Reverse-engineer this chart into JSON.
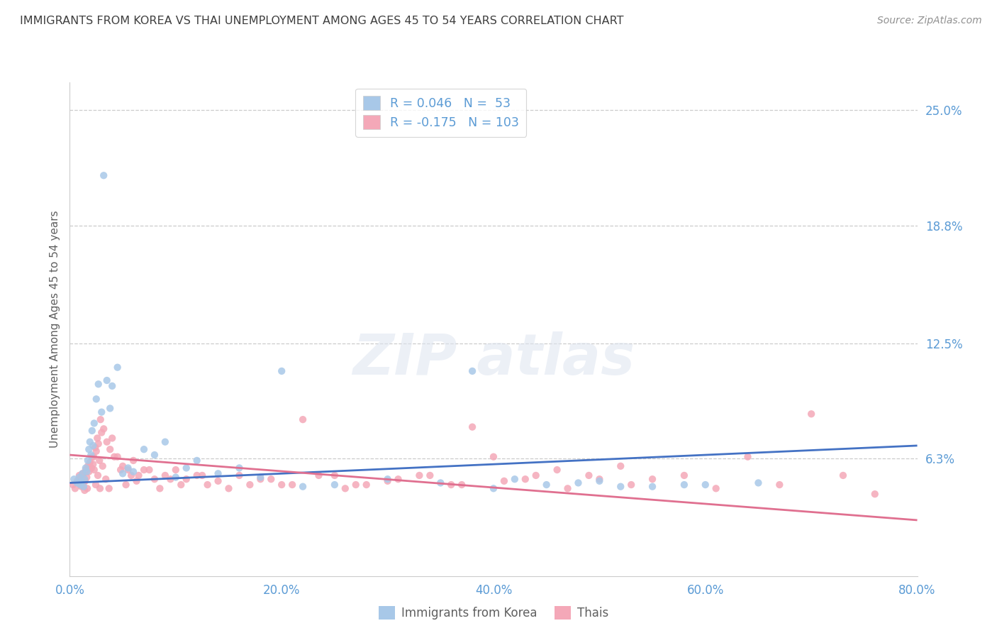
{
  "title": "IMMIGRANTS FROM KOREA VS THAI UNEMPLOYMENT AMONG AGES 45 TO 54 YEARS CORRELATION CHART",
  "source": "Source: ZipAtlas.com",
  "ylabel": "Unemployment Among Ages 45 to 54 years",
  "xlabel_vals": [
    0.0,
    20.0,
    40.0,
    60.0,
    80.0
  ],
  "ytick_vals": [
    6.3,
    12.5,
    18.8,
    25.0
  ],
  "xlim": [
    0.0,
    80.0
  ],
  "ylim": [
    0.0,
    26.5
  ],
  "korea_R": 0.046,
  "korea_N": 53,
  "thai_R": -0.175,
  "thai_N": 103,
  "korea_color": "#a8c8e8",
  "thai_color": "#f4a8b8",
  "korea_line_color": "#4472c4",
  "thai_line_color": "#e07090",
  "title_color": "#3f3f3f",
  "axis_color": "#5b9bd5",
  "korea_trend_x0": 0.0,
  "korea_trend_y0": 5.0,
  "korea_trend_x1": 80.0,
  "korea_trend_y1": 7.0,
  "thai_trend_x0": 0.0,
  "thai_trend_y0": 6.5,
  "thai_trend_x1": 80.0,
  "thai_trend_y1": 3.0,
  "korea_x": [
    0.4,
    0.7,
    0.9,
    1.0,
    1.1,
    1.2,
    1.3,
    1.4,
    1.5,
    1.6,
    1.7,
    1.8,
    1.9,
    2.0,
    2.1,
    2.2,
    2.3,
    2.5,
    2.7,
    3.0,
    3.2,
    3.5,
    3.8,
    4.0,
    4.5,
    5.0,
    5.5,
    6.0,
    7.0,
    8.0,
    9.0,
    10.0,
    11.0,
    12.0,
    14.0,
    16.0,
    18.0,
    20.0,
    22.0,
    25.0,
    30.0,
    35.0,
    40.0,
    45.0,
    50.0,
    55.0,
    60.0,
    65.0,
    38.0,
    42.0,
    48.0,
    52.0,
    58.0
  ],
  "korea_y": [
    5.2,
    5.0,
    5.3,
    4.9,
    5.1,
    5.5,
    4.8,
    5.2,
    5.8,
    5.6,
    6.2,
    6.8,
    7.2,
    6.5,
    7.8,
    7.0,
    8.2,
    9.5,
    10.3,
    8.8,
    21.5,
    10.5,
    9.0,
    10.2,
    11.2,
    5.5,
    5.8,
    5.6,
    6.8,
    6.5,
    7.2,
    5.3,
    5.8,
    6.2,
    5.5,
    5.8,
    5.3,
    11.0,
    4.8,
    4.9,
    5.2,
    5.0,
    4.7,
    4.9,
    5.1,
    4.8,
    4.9,
    5.0,
    11.0,
    5.2,
    5.0,
    4.8,
    4.9
  ],
  "thai_x": [
    0.3,
    0.5,
    0.7,
    0.9,
    1.0,
    1.1,
    1.2,
    1.3,
    1.4,
    1.5,
    1.6,
    1.7,
    1.8,
    1.9,
    2.0,
    2.1,
    2.2,
    2.3,
    2.4,
    2.5,
    2.6,
    2.7,
    2.8,
    2.9,
    3.0,
    3.2,
    3.5,
    3.8,
    4.0,
    4.5,
    5.0,
    5.5,
    6.0,
    6.5,
    7.0,
    8.0,
    9.0,
    10.0,
    11.0,
    12.0,
    13.0,
    14.0,
    16.0,
    18.0,
    20.0,
    22.0,
    25.0,
    27.0,
    30.0,
    33.0,
    36.0,
    38.0,
    40.0,
    43.0,
    46.0,
    49.0,
    52.0,
    55.0,
    58.0,
    61.0,
    64.0,
    67.0,
    70.0,
    73.0,
    76.0,
    1.05,
    1.25,
    1.45,
    1.65,
    1.85,
    2.05,
    2.25,
    2.45,
    2.65,
    2.85,
    3.1,
    3.4,
    3.7,
    4.2,
    4.8,
    5.3,
    5.8,
    6.3,
    7.5,
    8.5,
    9.5,
    10.5,
    12.5,
    15.0,
    17.0,
    19.0,
    21.0,
    23.5,
    26.0,
    28.0,
    31.0,
    34.0,
    37.0,
    41.0,
    44.0,
    47.0,
    50.0,
    53.0
  ],
  "thai_y": [
    4.9,
    4.7,
    5.1,
    5.4,
    5.2,
    4.8,
    5.5,
    5.0,
    4.6,
    5.7,
    5.3,
    5.9,
    5.6,
    6.1,
    5.8,
    6.4,
    6.0,
    5.7,
    6.9,
    6.7,
    7.4,
    7.1,
    6.2,
    8.4,
    7.7,
    7.9,
    7.2,
    6.8,
    7.4,
    6.4,
    5.9,
    5.7,
    6.2,
    5.4,
    5.7,
    5.2,
    5.4,
    5.7,
    5.2,
    5.4,
    4.9,
    5.1,
    5.4,
    5.2,
    4.9,
    8.4,
    5.4,
    4.9,
    5.1,
    5.4,
    4.9,
    8.0,
    6.4,
    5.2,
    5.7,
    5.4,
    5.9,
    5.2,
    5.4,
    4.7,
    6.4,
    4.9,
    8.7,
    5.4,
    4.4,
    4.9,
    5.4,
    5.1,
    4.7,
    5.9,
    5.8,
    6.4,
    4.9,
    5.4,
    4.7,
    5.9,
    5.2,
    4.7,
    6.4,
    5.7,
    4.9,
    5.4,
    5.1,
    5.7,
    4.7,
    5.2,
    4.9,
    5.4,
    4.7,
    4.9,
    5.2,
    4.9,
    5.4,
    4.7,
    4.9,
    5.2,
    5.4,
    4.9,
    5.1,
    5.4,
    4.7,
    5.2,
    4.9
  ]
}
